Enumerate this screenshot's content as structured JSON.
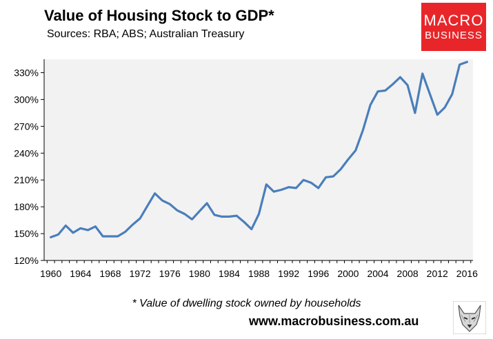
{
  "chart_data": {
    "type": "line",
    "title": "Value of Housing Stock to GDP*",
    "subtitle": "Sources: RBA; ABS; Australian Treasury",
    "xlabel": "",
    "ylabel": "",
    "ylim": [
      120,
      345
    ],
    "xlim": [
      1959.6,
      2017.3
    ],
    "y_ticks": [
      120,
      150,
      180,
      210,
      240,
      270,
      300,
      330
    ],
    "y_tick_labels": [
      "120%",
      "150%",
      "180%",
      "210%",
      "240%",
      "270%",
      "300%",
      "330%"
    ],
    "x_ticks": [
      1960,
      1964,
      1968,
      1972,
      1976,
      1980,
      1984,
      1988,
      1992,
      1996,
      2000,
      2004,
      2008,
      2012,
      2016
    ],
    "x_tick_labels": [
      "1960",
      "1964",
      "1968",
      "1972",
      "1976",
      "1980",
      "1984",
      "1988",
      "1992",
      "1996",
      "2000",
      "2004",
      "2008",
      "2012",
      "2016"
    ],
    "series": [
      {
        "name": "Value of Housing Stock to GDP",
        "color": "#4a7ebb",
        "x": [
          1960.5,
          1961.5,
          1962.5,
          1963.5,
          1964.5,
          1965.5,
          1966.5,
          1967.5,
          1968.5,
          1969.5,
          1970.5,
          1971.5,
          1972.5,
          1973.5,
          1974.5,
          1975.5,
          1976.5,
          1977.5,
          1978.5,
          1979.5,
          1980.5,
          1981.5,
          1982.5,
          1983.5,
          1984.5,
          1985.5,
          1986.5,
          1987.5,
          1988.5,
          1989.5,
          1990.5,
          1991.5,
          1992.5,
          1993.5,
          1994.5,
          1995.5,
          1996.5,
          1997.5,
          1998.5,
          1999.5,
          2000.5,
          2001.5,
          2002.5,
          2003.5,
          2004.5,
          2005.5,
          2006.5,
          2007.5,
          2008.5,
          2009.5,
          2010.5,
          2011.5,
          2012.5,
          2013.5,
          2014.5,
          2015.5,
          2016.5
        ],
        "values": [
          146,
          149,
          159,
          151,
          156,
          154,
          158,
          147,
          147,
          147,
          152,
          160,
          167,
          181,
          195,
          187,
          183,
          176,
          172,
          166,
          175,
          184,
          171,
          169,
          169,
          170,
          163,
          155,
          172,
          205,
          197,
          199,
          202,
          201,
          210,
          207,
          201,
          213,
          214,
          222,
          233,
          243,
          266,
          294,
          309,
          310,
          317,
          325,
          316,
          285,
          329,
          306,
          283,
          291,
          306,
          339,
          342
        ]
      }
    ],
    "footnote": "* Value of dwelling stock owned by households",
    "source_url": "www.macrobusiness.com.au",
    "grid": false,
    "legend": "none"
  },
  "logo": {
    "line1": "MACRO",
    "line2": "BUSINESS",
    "color": "#e8262a"
  },
  "colors": {
    "plot_bg": "#f2f2f2",
    "line": "#4a7ebb",
    "axis": "#000000"
  }
}
